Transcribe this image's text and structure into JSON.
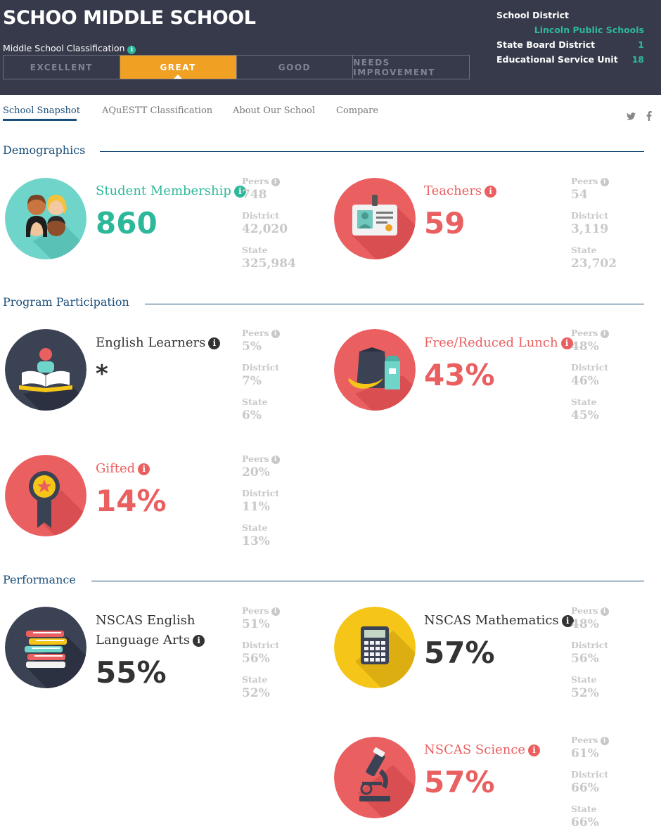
{
  "header": {
    "school_name": "SCHOO MIDDLE SCHOOL",
    "classification_label": "Middle School Classification",
    "ratings": [
      "EXCELLENT",
      "GREAT",
      "GOOD",
      "NEEDS IMPROVEMENT"
    ],
    "active_rating": "GREAT",
    "district": {
      "school_district_label": "School District",
      "school_district_value": "Lincoln Public Schools",
      "state_board_label": "State Board District",
      "state_board_value": "1",
      "esu_label": "Educational Service Unit",
      "esu_value": "18"
    }
  },
  "nav": {
    "tabs": [
      "School Snapshot",
      "AQuESTT Classification",
      "About Our School",
      "Compare"
    ],
    "active_tab": "School Snapshot",
    "twitter": "t",
    "facebook": "f"
  },
  "labels": {
    "peers": "Peers",
    "district": "District",
    "state": "State",
    "info": "i"
  },
  "sections": {
    "demographics": "Demographics",
    "program": "Program Participation",
    "performance": "Performance"
  },
  "metrics": {
    "student_membership": {
      "title": "Student Membership",
      "value": "860",
      "peers": "748",
      "district": "42,020",
      "state": "325,984"
    },
    "teachers": {
      "title": "Teachers",
      "value": "59",
      "peers": "54",
      "district": "3,119",
      "state": "23,702"
    },
    "english_learners": {
      "title": "English Learners",
      "value": "*",
      "peers": "5%",
      "district": "7%",
      "state": "6%"
    },
    "free_reduced_lunch": {
      "title": "Free/Reduced Lunch",
      "value": "43%",
      "peers": "48%",
      "district": "46%",
      "state": "45%"
    },
    "gifted": {
      "title": "Gifted",
      "value": "14%",
      "peers": "20%",
      "district": "11%",
      "state": "13%"
    },
    "nscas_ela": {
      "title_line1": "NSCAS English",
      "title_line2": "Language Arts",
      "value": "55%",
      "peers": "51%",
      "district": "56%",
      "state": "52%"
    },
    "nscas_math": {
      "title": "NSCAS Mathematics",
      "value": "57%",
      "peers": "48%",
      "district": "56%",
      "state": "52%"
    },
    "nscas_science": {
      "title": "NSCAS Science",
      "value": "57%",
      "peers": "61%",
      "district": "66%",
      "state": "66%"
    }
  },
  "icons": {
    "student_membership": "students-icon",
    "teachers": "id-badge-icon",
    "english_learners": "reading-book-icon",
    "free_reduced_lunch": "lunch-icon",
    "gifted": "award-ribbon-icon",
    "nscas_ela": "book-stack-icon",
    "nscas_math": "calculator-icon",
    "nscas_science": "microscope-icon"
  },
  "colors": {
    "header_bg": "#363a4a",
    "active_rating": "#f0a023",
    "teal": "#2eb89a",
    "red": "#ea5f60",
    "yellow": "#f5c518",
    "navy": "#1a4e7a",
    "muted": "#c8c8c8"
  }
}
